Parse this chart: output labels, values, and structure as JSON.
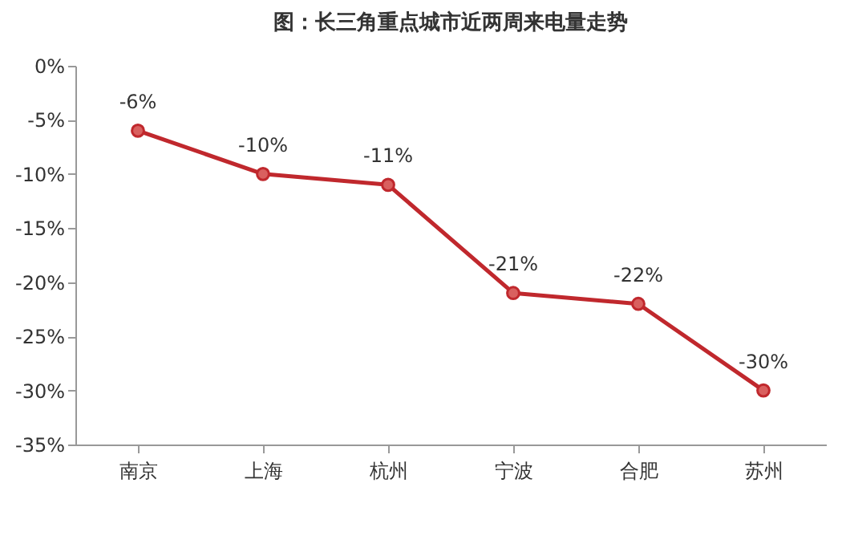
{
  "chart_data": {
    "type": "line",
    "title": "图：长三角重点城市近两周来电量走势",
    "categories": [
      "南京",
      "上海",
      "杭州",
      "宁波",
      "合肥",
      "苏州"
    ],
    "series": [
      {
        "color": "#c0282d",
        "values": [
          -6,
          -10,
          -11,
          -21,
          -22,
          -30
        ]
      }
    ],
    "value_labels": [
      "-6%",
      "-10%",
      "-11%",
      "-21%",
      "-22%",
      "-30%"
    ],
    "ylim": [
      -35,
      0
    ],
    "yticks": [
      {
        "value": 0,
        "label": "0%"
      },
      {
        "value": -5,
        "label": "-5%"
      },
      {
        "value": -10,
        "label": "-10%"
      },
      {
        "value": -15,
        "label": "-15%"
      },
      {
        "value": -20,
        "label": "-20%"
      },
      {
        "value": -25,
        "label": "-25%"
      },
      {
        "value": -30,
        "label": "-30%"
      },
      {
        "value": -35,
        "label": "-35%"
      }
    ],
    "marker": "circle",
    "line_style": "solid"
  }
}
